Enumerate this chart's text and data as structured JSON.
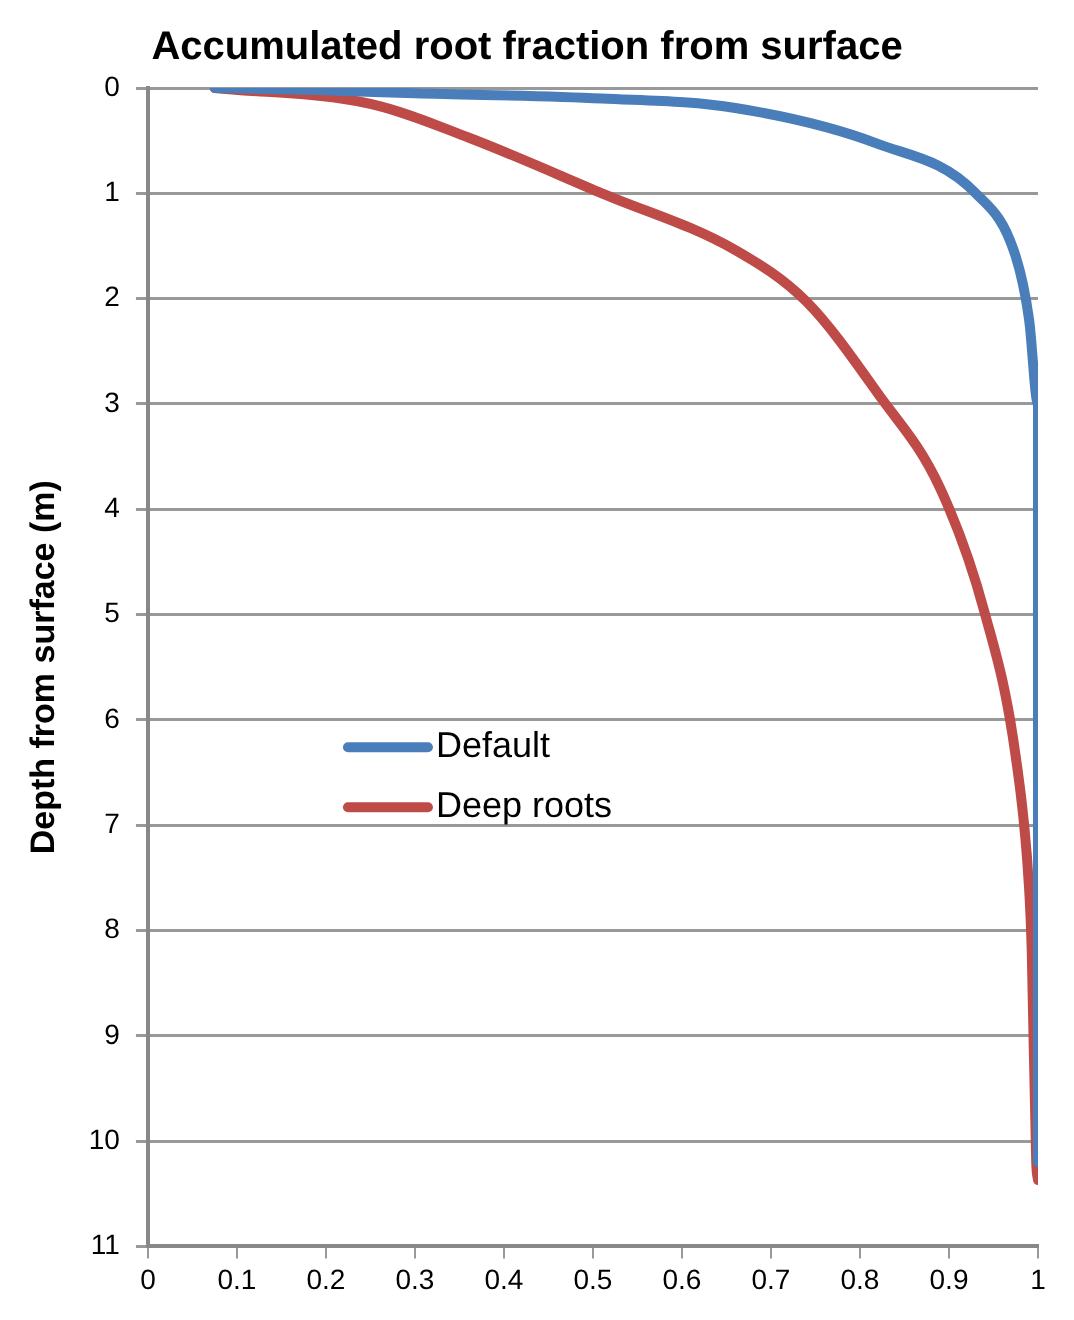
{
  "chart_data": {
    "type": "line",
    "title": "Accumulated root fraction from surface",
    "ylabel": "Depth from surface (m)",
    "xlim": [
      0,
      1
    ],
    "xticks": [
      0,
      0.1,
      0.2,
      0.3,
      0.4,
      0.5,
      0.6,
      0.7,
      0.8,
      0.9,
      1
    ],
    "ylim": [
      11,
      0
    ],
    "yticks": [
      0,
      1,
      2,
      3,
      4,
      5,
      6,
      7,
      8,
      9,
      10,
      11
    ],
    "grid": "y",
    "legend": "left",
    "marker": "none",
    "line_style": "solid",
    "series": [
      {
        "name": "Default",
        "color": "#4a7ebb",
        "x": [
          0.075,
          0.19,
          0.3,
          0.51,
          0.66,
          0.82,
          0.93,
          0.975,
          0.99,
          1,
          1,
          1
        ],
        "values": [
          0,
          0.02,
          0.05,
          0.1,
          0.19,
          0.53,
          1.0,
          1.6,
          2.2,
          3,
          6,
          10.2
        ]
      },
      {
        "name": "Deep roots",
        "color": "#be4b48",
        "x": [
          0.075,
          0.25,
          0.36,
          0.51,
          0.66,
          0.74,
          0.82,
          0.89,
          0.94,
          0.975,
          0.99,
          0.993,
          0.998,
          1
        ],
        "values": [
          0,
          0.15,
          0.47,
          1.0,
          1.54,
          2.03,
          2.9,
          3.8,
          4.98,
          6.35,
          7.6,
          8.2,
          10.2,
          10.37
        ]
      }
    ]
  }
}
